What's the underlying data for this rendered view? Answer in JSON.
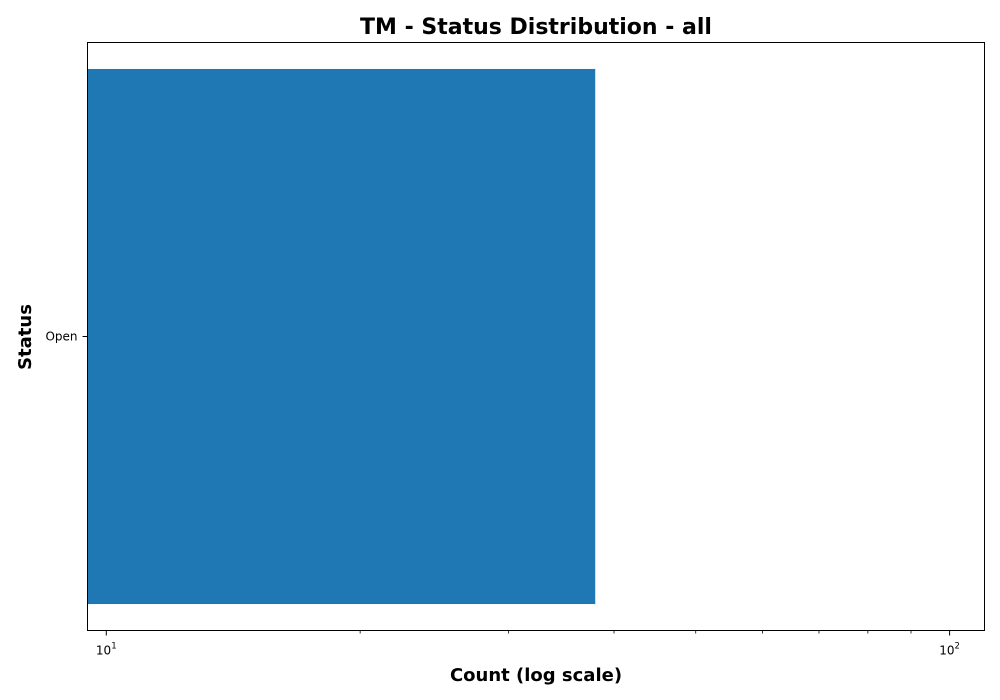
{
  "chart_data": {
    "type": "bar",
    "orientation": "horizontal",
    "title": "TM - Status Distribution - all",
    "xlabel": "Count (log scale)",
    "ylabel": "Status",
    "x_scale": "log",
    "xlim": [
      9.5,
      110
    ],
    "categories": [
      "Open"
    ],
    "values": [
      38
    ],
    "x_major_ticks": [
      {
        "value": 10,
        "base": "10",
        "exp": "1"
      },
      {
        "value": 100,
        "base": "10",
        "exp": "2"
      }
    ],
    "x_minor_ticks": [
      20,
      30,
      40,
      50,
      60,
      70,
      80,
      90
    ],
    "grid": false,
    "legend": "none",
    "colors": {
      "bar": "#1f77b4",
      "axes": "#000000",
      "background": "#ffffff"
    }
  }
}
